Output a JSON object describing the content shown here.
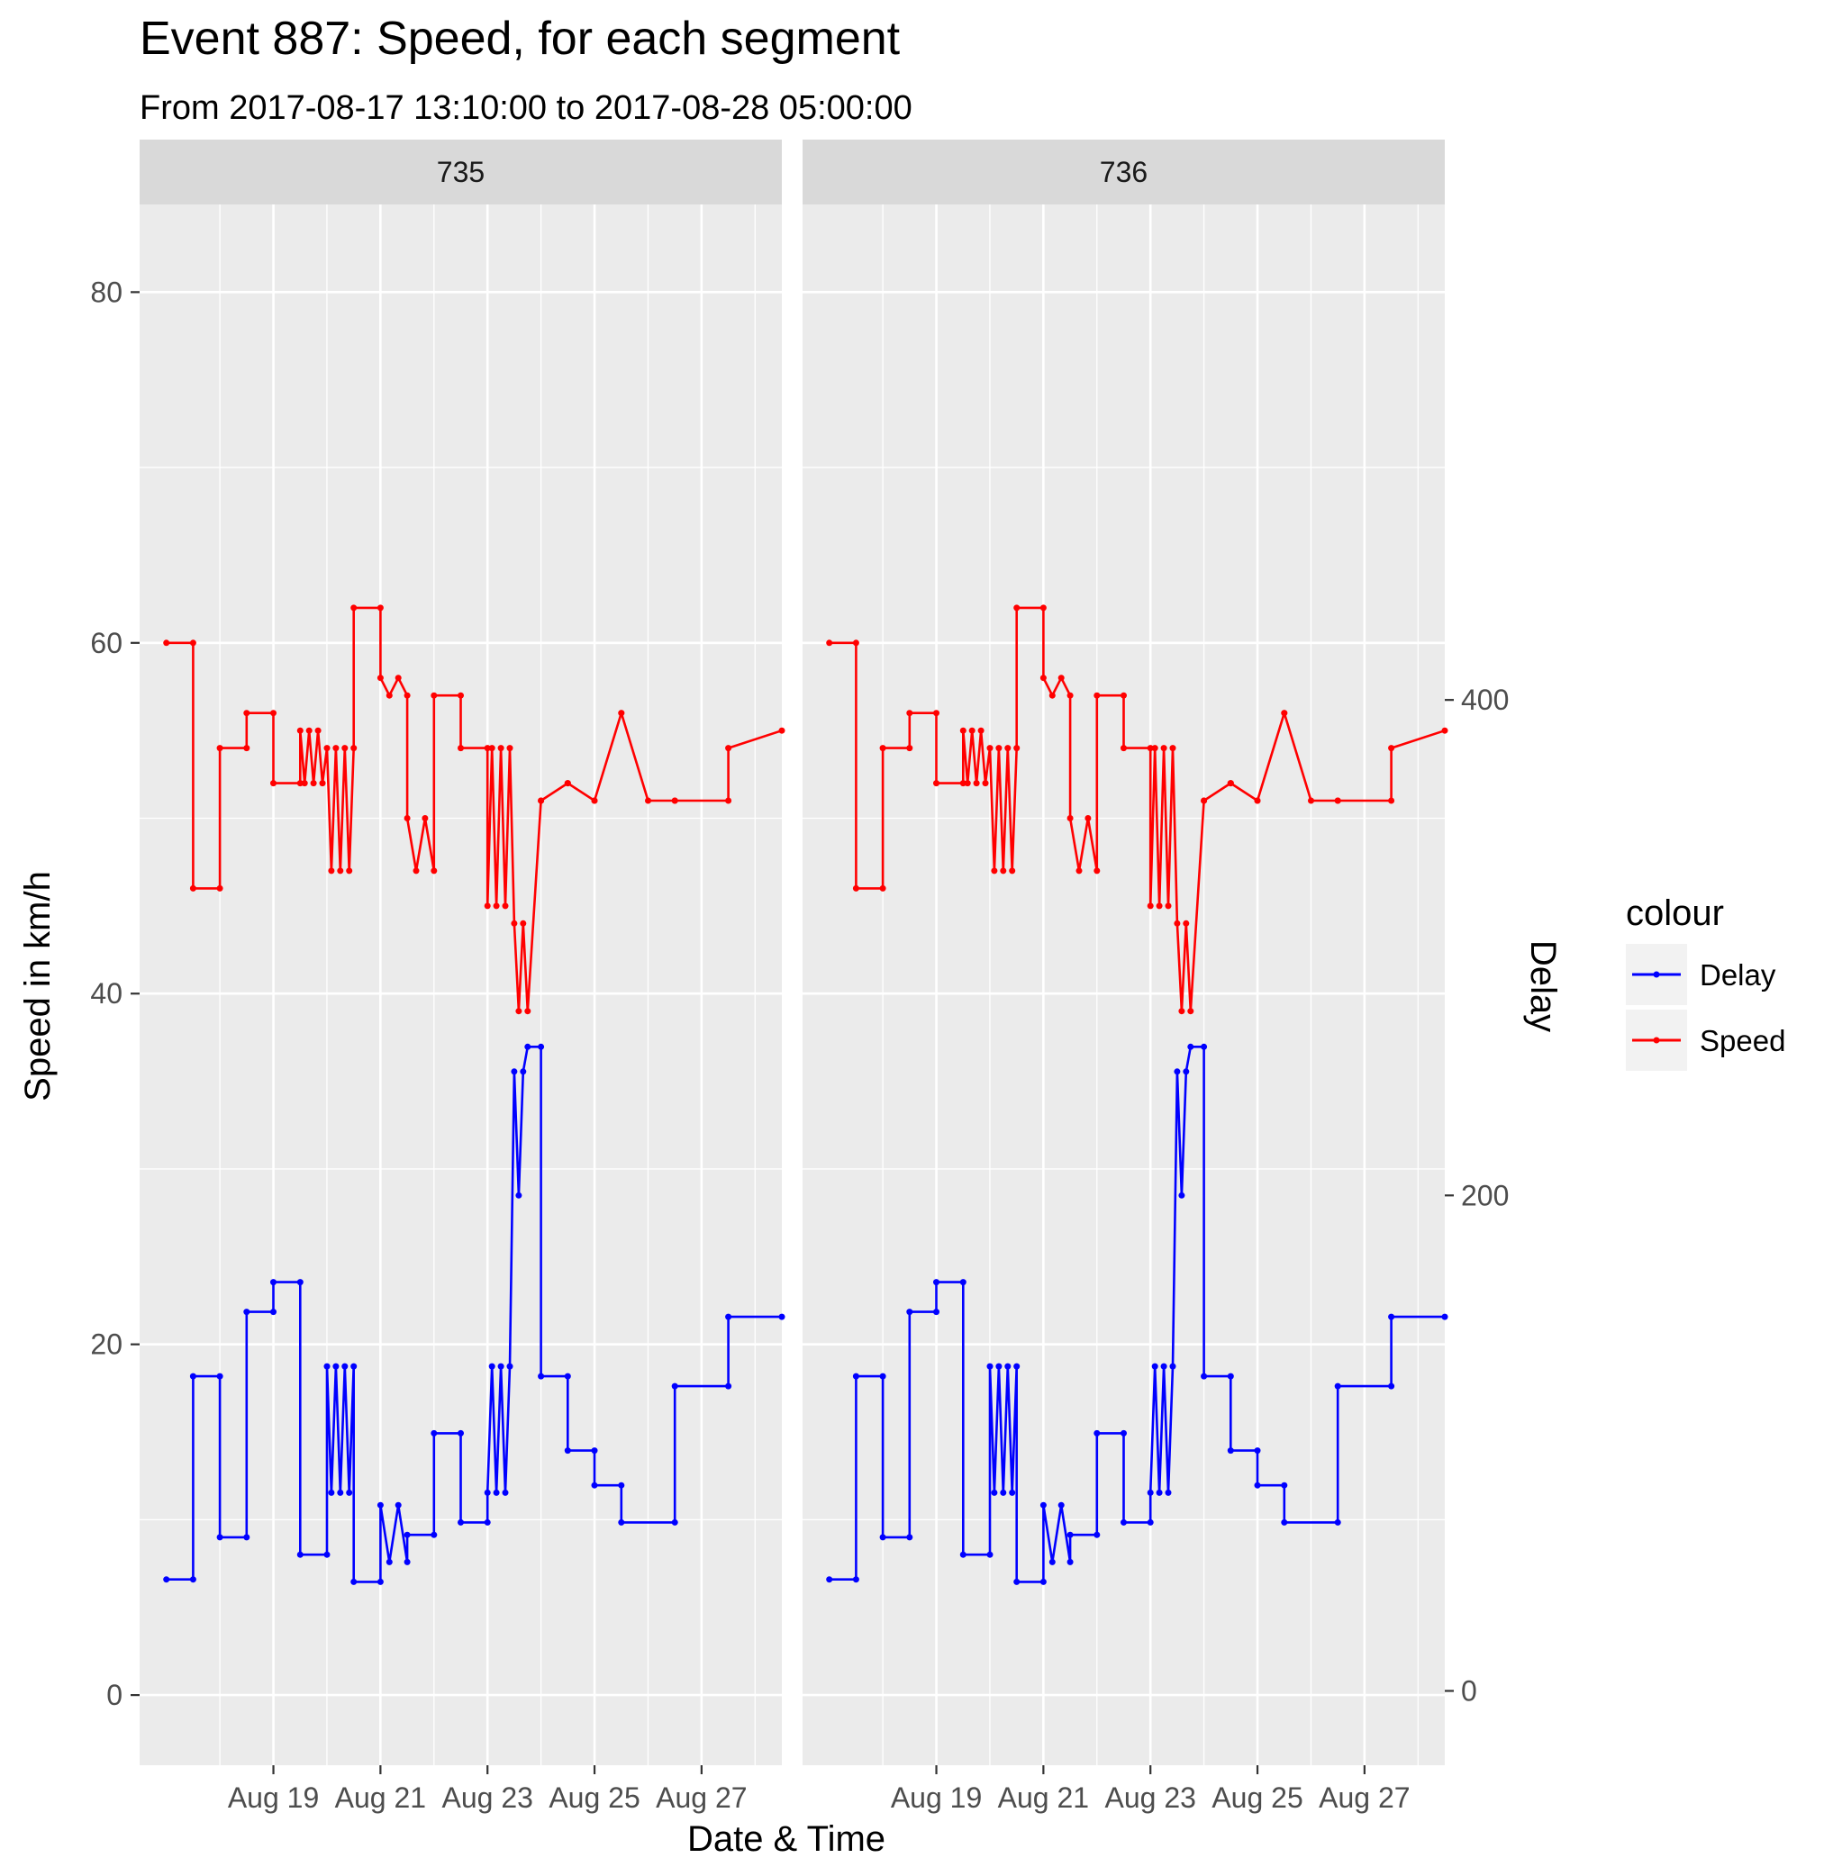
{
  "chart_data": {
    "type": "line",
    "title": "Event 887: Speed, for each segment",
    "subtitle": "From 2017-08-17 13:10:00 to 2017-08-28 05:00:00",
    "xlabel": "Date & Time",
    "ylabel": "Speed in km/h",
    "ylabel_secondary": "Delay",
    "x_range": [
      "2017-08-16T12:00",
      "2017-08-28T12:00"
    ],
    "ylim": [
      -4,
      85
    ],
    "ylim_secondary": [
      -30,
      600
    ],
    "x_ticks": [
      {
        "label": "Aug 19",
        "x": "2017-08-19"
      },
      {
        "label": "Aug 21",
        "x": "2017-08-21"
      },
      {
        "label": "Aug 23",
        "x": "2017-08-23"
      },
      {
        "label": "Aug 25",
        "x": "2017-08-25"
      },
      {
        "label": "Aug 27",
        "x": "2017-08-27"
      }
    ],
    "y_ticks": [
      "0",
      "20",
      "40",
      "60",
      "80"
    ],
    "y_ticks_secondary": [
      "0",
      "200",
      "400"
    ],
    "grid": true,
    "legend": {
      "title": "colour",
      "position": "right",
      "entries": [
        {
          "name": "Delay",
          "color": "#0000ff"
        },
        {
          "name": "Speed",
          "color": "#ff0000"
        }
      ]
    },
    "facets": [
      {
        "label": "735",
        "series": [
          {
            "name": "Speed",
            "color": "#ff0000",
            "axis": "left",
            "x": [
              "2017-08-17T00:00",
              "2017-08-17T12:00",
              "2017-08-17T12:00",
              "2017-08-18T00:00",
              "2017-08-18T00:00",
              "2017-08-18T12:00",
              "2017-08-18T12:00",
              "2017-08-19T00:00",
              "2017-08-19T00:00",
              "2017-08-19T12:00",
              "2017-08-19T12:00",
              "2017-08-19T14:00",
              "2017-08-19T16:00",
              "2017-08-19T18:00",
              "2017-08-19T20:00",
              "2017-08-19T22:00",
              "2017-08-20T00:00",
              "2017-08-20T02:00",
              "2017-08-20T04:00",
              "2017-08-20T06:00",
              "2017-08-20T08:00",
              "2017-08-20T10:00",
              "2017-08-20T12:00",
              "2017-08-20T12:00",
              "2017-08-21T00:00",
              "2017-08-21T00:00",
              "2017-08-21T04:00",
              "2017-08-21T08:00",
              "2017-08-21T12:00",
              "2017-08-21T12:00",
              "2017-08-21T16:00",
              "2017-08-21T20:00",
              "2017-08-22T00:00",
              "2017-08-22T00:00",
              "2017-08-22T12:00",
              "2017-08-22T12:00",
              "2017-08-23T00:00",
              "2017-08-23T00:00",
              "2017-08-23T02:00",
              "2017-08-23T04:00",
              "2017-08-23T06:00",
              "2017-08-23T08:00",
              "2017-08-23T10:00",
              "2017-08-23T12:00",
              "2017-08-23T14:00",
              "2017-08-23T16:00",
              "2017-08-23T18:00",
              "2017-08-24T00:00",
              "2017-08-24T00:00",
              "2017-08-24T12:00",
              "2017-08-24T12:00",
              "2017-08-25T00:00",
              "2017-08-25T00:00",
              "2017-08-25T12:00",
              "2017-08-25T12:00",
              "2017-08-26T00:00",
              "2017-08-26T12:00",
              "2017-08-26T12:00",
              "2017-08-27T12:00",
              "2017-08-27T12:00",
              "2017-08-28T12:00"
            ],
            "y": [
              60,
              60,
              46,
              46,
              54,
              54,
              56,
              56,
              52,
              52,
              55,
              52,
              55,
              52,
              55,
              52,
              54,
              47,
              54,
              47,
              54,
              47,
              54,
              62,
              62,
              58,
              57,
              58,
              57,
              50,
              47,
              50,
              47,
              57,
              57,
              54,
              54,
              45,
              54,
              45,
              54,
              45,
              54,
              44,
              39,
              44,
              39,
              51,
              51,
              52,
              52,
              51,
              51,
              56,
              56,
              51,
              51,
              51,
              51,
              54,
              55
            ]
          },
          {
            "name": "Delay",
            "color": "#0000ff",
            "axis": "right",
            "x": [
              "2017-08-17T00:00",
              "2017-08-17T12:00",
              "2017-08-17T12:00",
              "2017-08-18T00:00",
              "2017-08-18T00:00",
              "2017-08-18T12:00",
              "2017-08-18T12:00",
              "2017-08-19T00:00",
              "2017-08-19T00:00",
              "2017-08-19T12:00",
              "2017-08-19T12:00",
              "2017-08-20T00:00",
              "2017-08-20T00:00",
              "2017-08-20T02:00",
              "2017-08-20T04:00",
              "2017-08-20T06:00",
              "2017-08-20T08:00",
              "2017-08-20T10:00",
              "2017-08-20T12:00",
              "2017-08-20T12:00",
              "2017-08-21T00:00",
              "2017-08-21T00:00",
              "2017-08-21T04:00",
              "2017-08-21T08:00",
              "2017-08-21T12:00",
              "2017-08-21T12:00",
              "2017-08-22T00:00",
              "2017-08-22T00:00",
              "2017-08-22T12:00",
              "2017-08-22T12:00",
              "2017-08-23T00:00",
              "2017-08-23T00:00",
              "2017-08-23T02:00",
              "2017-08-23T04:00",
              "2017-08-23T06:00",
              "2017-08-23T08:00",
              "2017-08-23T10:00",
              "2017-08-23T12:00",
              "2017-08-23T14:00",
              "2017-08-23T16:00",
              "2017-08-23T18:00",
              "2017-08-24T00:00",
              "2017-08-24T00:00",
              "2017-08-24T12:00",
              "2017-08-24T12:00",
              "2017-08-25T00:00",
              "2017-08-25T00:00",
              "2017-08-25T12:00",
              "2017-08-25T12:00",
              "2017-08-26T12:00",
              "2017-08-26T12:00",
              "2017-08-27T12:00",
              "2017-08-27T12:00",
              "2017-08-28T12:00"
            ],
            "y": [
              45,
              45,
              127,
              127,
              62,
              62,
              153,
              153,
              165,
              165,
              55,
              55,
              131,
              80,
              131,
              80,
              131,
              80,
              131,
              44,
              44,
              75,
              52,
              75,
              52,
              63,
              63,
              104,
              104,
              68,
              68,
              80,
              131,
              80,
              131,
              80,
              131,
              250,
              200,
              250,
              260,
              260,
              127,
              127,
              97,
              97,
              83,
              83,
              68,
              68,
              123,
              123,
              151,
              151
            ]
          }
        ]
      },
      {
        "label": "736",
        "series": [
          {
            "name": "Speed",
            "color": "#ff0000",
            "axis": "left",
            "x": [
              "2017-08-17T00:00",
              "2017-08-17T12:00",
              "2017-08-17T12:00",
              "2017-08-18T00:00",
              "2017-08-18T00:00",
              "2017-08-18T12:00",
              "2017-08-18T12:00",
              "2017-08-19T00:00",
              "2017-08-19T00:00",
              "2017-08-19T12:00",
              "2017-08-19T12:00",
              "2017-08-19T14:00",
              "2017-08-19T16:00",
              "2017-08-19T18:00",
              "2017-08-19T20:00",
              "2017-08-19T22:00",
              "2017-08-20T00:00",
              "2017-08-20T02:00",
              "2017-08-20T04:00",
              "2017-08-20T06:00",
              "2017-08-20T08:00",
              "2017-08-20T10:00",
              "2017-08-20T12:00",
              "2017-08-20T12:00",
              "2017-08-21T00:00",
              "2017-08-21T00:00",
              "2017-08-21T04:00",
              "2017-08-21T08:00",
              "2017-08-21T12:00",
              "2017-08-21T12:00",
              "2017-08-21T16:00",
              "2017-08-21T20:00",
              "2017-08-22T00:00",
              "2017-08-22T00:00",
              "2017-08-22T12:00",
              "2017-08-22T12:00",
              "2017-08-23T00:00",
              "2017-08-23T00:00",
              "2017-08-23T02:00",
              "2017-08-23T04:00",
              "2017-08-23T06:00",
              "2017-08-23T08:00",
              "2017-08-23T10:00",
              "2017-08-23T12:00",
              "2017-08-23T14:00",
              "2017-08-23T16:00",
              "2017-08-23T18:00",
              "2017-08-24T00:00",
              "2017-08-24T00:00",
              "2017-08-24T12:00",
              "2017-08-24T12:00",
              "2017-08-25T00:00",
              "2017-08-25T00:00",
              "2017-08-25T12:00",
              "2017-08-25T12:00",
              "2017-08-26T00:00",
              "2017-08-26T12:00",
              "2017-08-26T12:00",
              "2017-08-27T12:00",
              "2017-08-27T12:00",
              "2017-08-28T12:00"
            ],
            "y": [
              60,
              60,
              46,
              46,
              54,
              54,
              56,
              56,
              52,
              52,
              55,
              52,
              55,
              52,
              55,
              52,
              54,
              47,
              54,
              47,
              54,
              47,
              54,
              62,
              62,
              58,
              57,
              58,
              57,
              50,
              47,
              50,
              47,
              57,
              57,
              54,
              54,
              45,
              54,
              45,
              54,
              45,
              54,
              44,
              39,
              44,
              39,
              51,
              51,
              52,
              52,
              51,
              51,
              56,
              56,
              51,
              51,
              51,
              51,
              54,
              55
            ]
          },
          {
            "name": "Delay",
            "color": "#0000ff",
            "axis": "right",
            "x": [
              "2017-08-17T00:00",
              "2017-08-17T12:00",
              "2017-08-17T12:00",
              "2017-08-18T00:00",
              "2017-08-18T00:00",
              "2017-08-18T12:00",
              "2017-08-18T12:00",
              "2017-08-19T00:00",
              "2017-08-19T00:00",
              "2017-08-19T12:00",
              "2017-08-19T12:00",
              "2017-08-20T00:00",
              "2017-08-20T00:00",
              "2017-08-20T02:00",
              "2017-08-20T04:00",
              "2017-08-20T06:00",
              "2017-08-20T08:00",
              "2017-08-20T10:00",
              "2017-08-20T12:00",
              "2017-08-20T12:00",
              "2017-08-21T00:00",
              "2017-08-21T00:00",
              "2017-08-21T04:00",
              "2017-08-21T08:00",
              "2017-08-21T12:00",
              "2017-08-21T12:00",
              "2017-08-22T00:00",
              "2017-08-22T00:00",
              "2017-08-22T12:00",
              "2017-08-22T12:00",
              "2017-08-23T00:00",
              "2017-08-23T00:00",
              "2017-08-23T02:00",
              "2017-08-23T04:00",
              "2017-08-23T06:00",
              "2017-08-23T08:00",
              "2017-08-23T10:00",
              "2017-08-23T12:00",
              "2017-08-23T14:00",
              "2017-08-23T16:00",
              "2017-08-23T18:00",
              "2017-08-24T00:00",
              "2017-08-24T00:00",
              "2017-08-24T12:00",
              "2017-08-24T12:00",
              "2017-08-25T00:00",
              "2017-08-25T00:00",
              "2017-08-25T12:00",
              "2017-08-25T12:00",
              "2017-08-26T12:00",
              "2017-08-26T12:00",
              "2017-08-27T12:00",
              "2017-08-27T12:00",
              "2017-08-28T12:00"
            ],
            "y": [
              45,
              45,
              127,
              127,
              62,
              62,
              153,
              153,
              165,
              165,
              55,
              55,
              131,
              80,
              131,
              80,
              131,
              80,
              131,
              44,
              44,
              75,
              52,
              75,
              52,
              63,
              63,
              104,
              104,
              68,
              68,
              80,
              131,
              80,
              131,
              80,
              131,
              250,
              200,
              250,
              260,
              260,
              127,
              127,
              97,
              97,
              83,
              83,
              68,
              68,
              123,
              123,
              151,
              151
            ]
          }
        ]
      }
    ]
  }
}
